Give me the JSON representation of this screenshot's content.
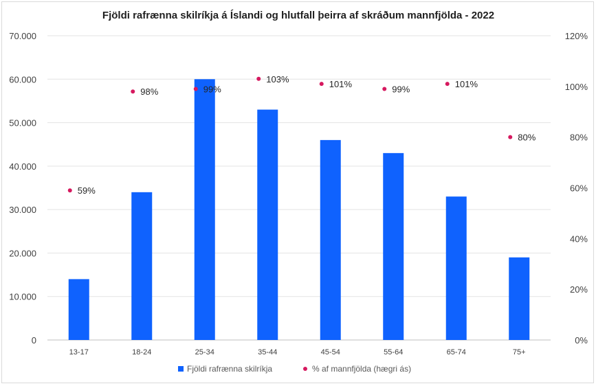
{
  "chart_data": {
    "type": "bar",
    "title": "Fjöldi rafrænna skilríkja á Íslandi og hlutfall þeirra af skráðum mannfjölda - 2022",
    "categories": [
      "13-17",
      "18-24",
      "25-34",
      "35-44",
      "45-54",
      "55-64",
      "65-74",
      "75+"
    ],
    "series": [
      {
        "name": "Fjöldi rafrænna skilríkja",
        "type": "bar",
        "axis": "left",
        "color": "#0f62fe",
        "values": [
          14000,
          34000,
          60000,
          53000,
          46000,
          43000,
          33000,
          19000
        ]
      },
      {
        "name": "% af mannfjölda (hægri ás)",
        "type": "scatter",
        "axis": "right",
        "color": "#d6195f",
        "values": [
          59,
          98,
          99,
          103,
          101,
          99,
          101,
          80
        ],
        "labels": [
          "59%",
          "98%",
          "99%",
          "103%",
          "101%",
          "99%",
          "101%",
          "80%"
        ]
      }
    ],
    "y_left": {
      "min": 0,
      "max": 70000,
      "ticks": [
        0,
        10000,
        20000,
        30000,
        40000,
        50000,
        60000,
        70000
      ],
      "tick_labels": [
        "0",
        "10.000",
        "20.000",
        "30.000",
        "40.000",
        "50.000",
        "60.000",
        "70.000"
      ]
    },
    "y_right": {
      "min": 0,
      "max": 120,
      "ticks": [
        0,
        20,
        40,
        60,
        80,
        100,
        120
      ],
      "tick_labels": [
        "0%",
        "20%",
        "40%",
        "60%",
        "80%",
        "100%",
        "120%"
      ]
    },
    "grid": true,
    "legend_position": "bottom"
  }
}
